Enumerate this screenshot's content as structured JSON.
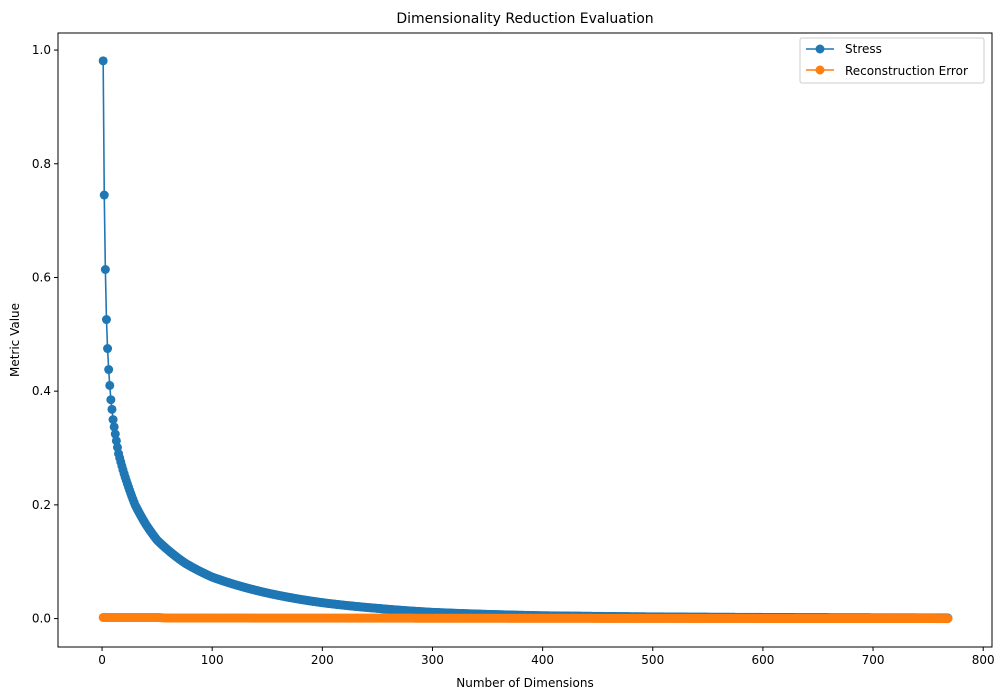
{
  "chart_data": {
    "type": "line",
    "title": "Dimensionality Reduction Evaluation",
    "xlabel": "Number of Dimensions",
    "ylabel": "Metric Value",
    "xlim": [
      -40,
      808
    ],
    "ylim": [
      -0.05,
      1.03
    ],
    "x_ticks": [
      "0",
      "100",
      "200",
      "300",
      "400",
      "500",
      "600",
      "700",
      "800"
    ],
    "y_ticks": [
      "0.0",
      "0.2",
      "0.4",
      "0.6",
      "0.8",
      "1.0"
    ],
    "grid": false,
    "legend_position": "top-right",
    "x_range": [
      1,
      768
    ],
    "series": [
      {
        "name": "Stress",
        "color": "#1f77b4",
        "marker": "circle",
        "sample_points": [
          [
            1,
            0.981
          ],
          [
            2,
            0.745
          ],
          [
            3,
            0.614
          ],
          [
            4,
            0.526
          ],
          [
            5,
            0.475
          ],
          [
            6,
            0.438
          ],
          [
            7,
            0.41
          ],
          [
            8,
            0.385
          ],
          [
            9,
            0.368
          ],
          [
            10,
            0.35
          ],
          [
            15,
            0.29
          ],
          [
            20,
            0.255
          ],
          [
            30,
            0.2
          ],
          [
            40,
            0.165
          ],
          [
            50,
            0.138
          ],
          [
            75,
            0.098
          ],
          [
            100,
            0.073
          ],
          [
            150,
            0.045
          ],
          [
            200,
            0.028
          ],
          [
            250,
            0.018
          ],
          [
            300,
            0.011
          ],
          [
            400,
            0.005
          ],
          [
            500,
            0.003
          ],
          [
            600,
            0.002
          ],
          [
            768,
            0.001
          ]
        ]
      },
      {
        "name": "Reconstruction Error",
        "color": "#ff7f0e",
        "marker": "circle",
        "sample_points": [
          [
            1,
            0.002
          ],
          [
            50,
            0.002
          ],
          [
            60,
            0.001
          ],
          [
            768,
            0.0
          ]
        ]
      }
    ]
  }
}
